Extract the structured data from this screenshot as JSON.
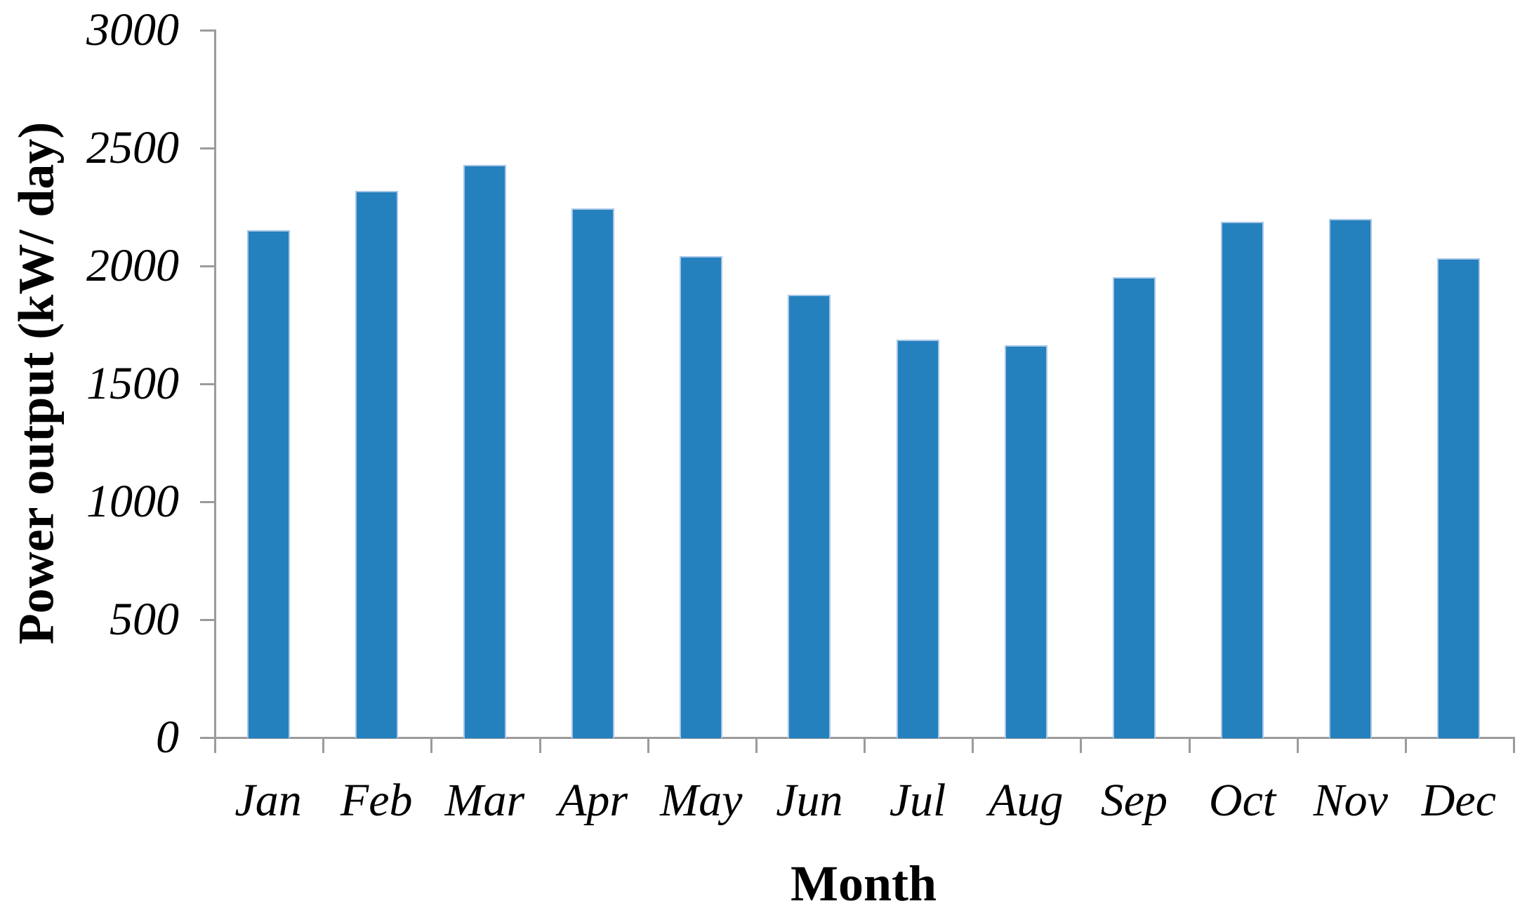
{
  "chart_data": {
    "type": "bar",
    "title": "",
    "xlabel": "Month",
    "ylabel": "Power output (kW/ day)",
    "categories": [
      "Jan",
      "Feb",
      "Mar",
      "Apr",
      "May",
      "Jun",
      "Jul",
      "Aug",
      "Sep",
      "Oct",
      "Nov",
      "Dec"
    ],
    "values": [
      2150,
      2315,
      2425,
      2240,
      2040,
      1875,
      1685,
      1660,
      1950,
      2185,
      2195,
      2030
    ],
    "ylim": [
      0,
      3000
    ],
    "y_ticks": [
      0,
      500,
      1000,
      1500,
      2000,
      2500,
      3000
    ],
    "grid": "off",
    "legend": "none",
    "bar_color": "#2580BE",
    "bar_edge_color": "#A8C6E6",
    "axis_color": "#9B9B9B",
    "text_color": "#000000",
    "background_color": "#FFFFFF"
  }
}
